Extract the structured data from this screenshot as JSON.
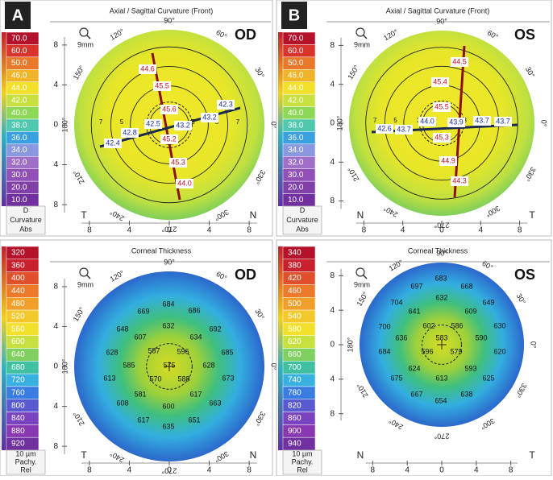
{
  "panels": [
    {
      "letter": "A",
      "title": "Axial / Sagittal Curvature (Front)",
      "eye": "OD",
      "zoom": "9mm",
      "scale": [
        "70.0",
        "60.0",
        "50.0",
        "46.0",
        "44.0",
        "42.0",
        "40.0",
        "38.0",
        "36.0",
        "34.0",
        "32.0",
        "30.0",
        "20.0",
        "10.0"
      ],
      "scale_footer": [
        "D",
        "Curvature",
        "Abs"
      ],
      "left_ticks": [
        "8",
        "4",
        "0",
        "4",
        "8"
      ],
      "bottom_ticks": [
        "8",
        "4",
        "0",
        "4",
        "8"
      ],
      "corners": [
        "T",
        "N"
      ],
      "angles": [
        "90°",
        "120°",
        "150°",
        "180°",
        "210°",
        "240°",
        "270°",
        "300°",
        "330°",
        "0°",
        "30°",
        "60°"
      ],
      "ring_labels": [
        "7",
        "5",
        "3",
        "3",
        "5",
        "7"
      ],
      "steep": [
        "44.6",
        "45.5",
        "45.6",
        "45.2",
        "45.3",
        "44.0"
      ],
      "flat": [
        "42.3",
        "43.2",
        "43.2",
        "42.5",
        "42.8",
        "42.4"
      ]
    },
    {
      "letter": "B",
      "title": "Axial / Sagittal Curvature (Front)",
      "eye": "OS",
      "zoom": "9mm",
      "scale": [
        "70.0",
        "60.0",
        "50.0",
        "46.0",
        "44.0",
        "42.0",
        "40.0",
        "38.0",
        "36.0",
        "34.0",
        "32.0",
        "30.0",
        "20.0",
        "10.0"
      ],
      "scale_footer": [
        "D",
        "Curvature",
        "Abs"
      ],
      "left_ticks": [
        "8",
        "4",
        "0",
        "4",
        "8"
      ],
      "bottom_ticks": [
        "8",
        "4",
        "0",
        "4",
        "8"
      ],
      "corners": [
        "N",
        "T"
      ],
      "angles": [
        "90°",
        "120°",
        "150°",
        "180°",
        "210°",
        "240°",
        "270°",
        "300°",
        "330°",
        "0°",
        "30°",
        "60°"
      ],
      "ring_labels": [
        "7",
        "5",
        "3",
        "3",
        "5",
        "7"
      ],
      "steep": [
        "44.5",
        "45.4",
        "45.5",
        "45.3",
        "44.9",
        "44.3"
      ],
      "flat": [
        "43.7",
        "43.7",
        "43.9",
        "44.0",
        "43.7",
        "42.6"
      ]
    },
    {
      "title": "Corneal Thickness",
      "eye": "OD",
      "zoom": "9mm",
      "scale": [
        "320",
        "360",
        "400",
        "440",
        "480",
        "520",
        "560",
        "600",
        "640",
        "680",
        "720",
        "760",
        "800",
        "840",
        "880",
        "920"
      ],
      "scale_footer": [
        "10 µm",
        "Pachy.",
        "Rel"
      ],
      "left_ticks": [
        "8",
        "4",
        "0",
        "4",
        "8"
      ],
      "bottom_ticks": [
        "8",
        "4",
        "0",
        "4",
        "8"
      ],
      "corners": [
        "T",
        "N"
      ],
      "angles": [
        "90°",
        "120°",
        "150°",
        "180°",
        "210°",
        "240°",
        "270°",
        "300°",
        "330°",
        "0°",
        "30°",
        "60°"
      ],
      "readings": [
        "669",
        "684",
        "686",
        "648",
        "632",
        "692",
        "607",
        "634",
        "628",
        "587",
        "596",
        "685",
        "585",
        "575",
        "628",
        "613",
        "570",
        "588",
        "673",
        "581",
        "617",
        "608",
        "600",
        "663",
        "617",
        "651",
        "635"
      ]
    },
    {
      "title": "Corneal Thickness",
      "eye": "OS",
      "zoom": "9mm",
      "scale": [
        "340",
        "380",
        "420",
        "460",
        "500",
        "540",
        "580",
        "620",
        "660",
        "700",
        "740",
        "780",
        "820",
        "860",
        "900",
        "940"
      ],
      "scale_footer": [
        "10 µm",
        "Pachy.",
        "Rel"
      ],
      "left_ticks": [
        "8",
        "4",
        "0",
        "4",
        "8"
      ],
      "bottom_ticks": [
        "8",
        "4",
        "0",
        "4",
        "8"
      ],
      "corners": [
        "N",
        "T"
      ],
      "angles": [
        "90°",
        "120°",
        "150°",
        "180°",
        "210°",
        "240°",
        "270°",
        "300°",
        "330°",
        "0°",
        "30°",
        "60°"
      ],
      "readings": [
        "683",
        "697",
        "668",
        "704",
        "632",
        "649",
        "641",
        "609",
        "602",
        "586",
        "630",
        "700",
        "583",
        "590",
        "596",
        "579",
        "620",
        "684",
        "636",
        "624",
        "593",
        "675",
        "613",
        "625",
        "667",
        "638",
        "654"
      ]
    }
  ]
}
